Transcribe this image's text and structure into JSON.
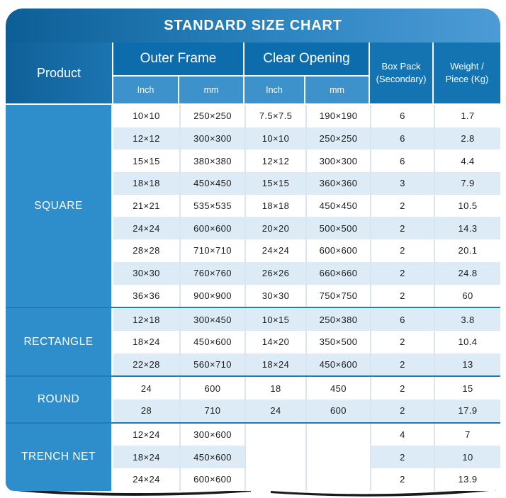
{
  "title": "STANDARD SIZE CHART",
  "colors": {
    "title_gradient_left": "#0c5e96",
    "title_gradient_right": "#4d9bd6",
    "group_header": "#0d6cac",
    "sub_header": "#3e92cb",
    "side_header": "#1374b1",
    "product_cell": "#2e8ecb",
    "alt_row": "#dcebf5",
    "group_separator": "#1e7cba"
  },
  "header": {
    "product": "Product",
    "outer_frame": "Outer Frame",
    "clear_opening": "Clear Opening",
    "sub": [
      "Inch",
      "mm",
      "Inch",
      "mm"
    ],
    "box_pack_line1": "Box Pack",
    "box_pack_line2": "(Secondary)",
    "weight_line1": "Weight /",
    "weight_line2": "Piece (Kg)"
  },
  "chart_data": {
    "type": "table",
    "title": "STANDARD SIZE CHART",
    "columns": [
      "Product",
      "Outer Frame Inch",
      "Outer Frame mm",
      "Clear Opening Inch",
      "Clear Opening mm",
      "Box Pack (Secondary)",
      "Weight / Piece (Kg)"
    ],
    "groups": [
      {
        "product": "SQUARE",
        "rows": [
          [
            "10×10",
            "250×250",
            "7.5×7.5",
            "190×190",
            "6",
            "1.7"
          ],
          [
            "12×12",
            "300×300",
            "10×10",
            "250×250",
            "6",
            "2.8"
          ],
          [
            "15×15",
            "380×380",
            "12×12",
            "300×300",
            "6",
            "4.4"
          ],
          [
            "18×18",
            "450×450",
            "15×15",
            "360×360",
            "3",
            "7.9"
          ],
          [
            "21×21",
            "535×535",
            "18×18",
            "450×450",
            "2",
            "10.5"
          ],
          [
            "24×24",
            "600×600",
            "20×20",
            "500×500",
            "2",
            "14.3"
          ],
          [
            "28×28",
            "710×710",
            "24×24",
            "600×600",
            "2",
            "20.1"
          ],
          [
            "30×30",
            "760×760",
            "26×26",
            "660×660",
            "2",
            "24.8"
          ],
          [
            "36×36",
            "900×900",
            "30×30",
            "750×750",
            "2",
            "60"
          ]
        ]
      },
      {
        "product": "RECTANGLE",
        "rows": [
          [
            "12×18",
            "300×450",
            "10×15",
            "250×380",
            "6",
            "3.8"
          ],
          [
            "18×24",
            "450×600",
            "14×20",
            "350×500",
            "2",
            "10.4"
          ],
          [
            "22×28",
            "560×710",
            "18×24",
            "450×600",
            "2",
            "13"
          ]
        ]
      },
      {
        "product": "ROUND",
        "rows": [
          [
            "24",
            "600",
            "18",
            "450",
            "2",
            "15"
          ],
          [
            "28",
            "710",
            "24",
            "600",
            "2",
            "17.9"
          ]
        ]
      },
      {
        "product": "TRENCH NET",
        "rows": [
          [
            "12×24",
            "300×600",
            "",
            "",
            "4",
            "7"
          ],
          [
            "18×24",
            "450×600",
            "",
            "",
            "2",
            "10"
          ],
          [
            "24×24",
            "600×600",
            "",
            "",
            "2",
            "13.9"
          ]
        ]
      }
    ]
  }
}
